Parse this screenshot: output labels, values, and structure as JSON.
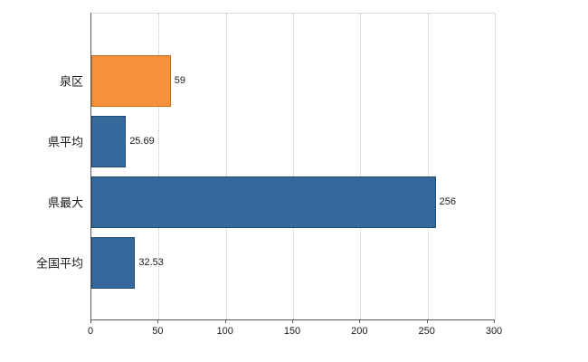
{
  "chart_data": {
    "type": "bar",
    "orientation": "horizontal",
    "title": "",
    "categories": [
      "泉区",
      "県平均",
      "県最大",
      "全国平均"
    ],
    "values": [
      59,
      25.69,
      256,
      32.53
    ],
    "value_labels": [
      "59",
      "25.69",
      "256",
      "32.53"
    ],
    "bar_colors": [
      "#f5913a",
      "#35689b",
      "#35689b",
      "#35689b"
    ],
    "bar_border_colors": [
      "#c86f1e",
      "#244b73",
      "#244b73",
      "#244b73"
    ],
    "xlim": [
      0,
      300
    ],
    "xticks": [
      0,
      50,
      100,
      150,
      200,
      250,
      300
    ],
    "grid": "vertical-dotted",
    "legend": "none"
  },
  "colors": {
    "axis": "#595959",
    "gridline": "#bfbfbf",
    "plot_top_border": "#d9d9d9",
    "text": "#1a1a1a",
    "background": "#ffffff"
  }
}
